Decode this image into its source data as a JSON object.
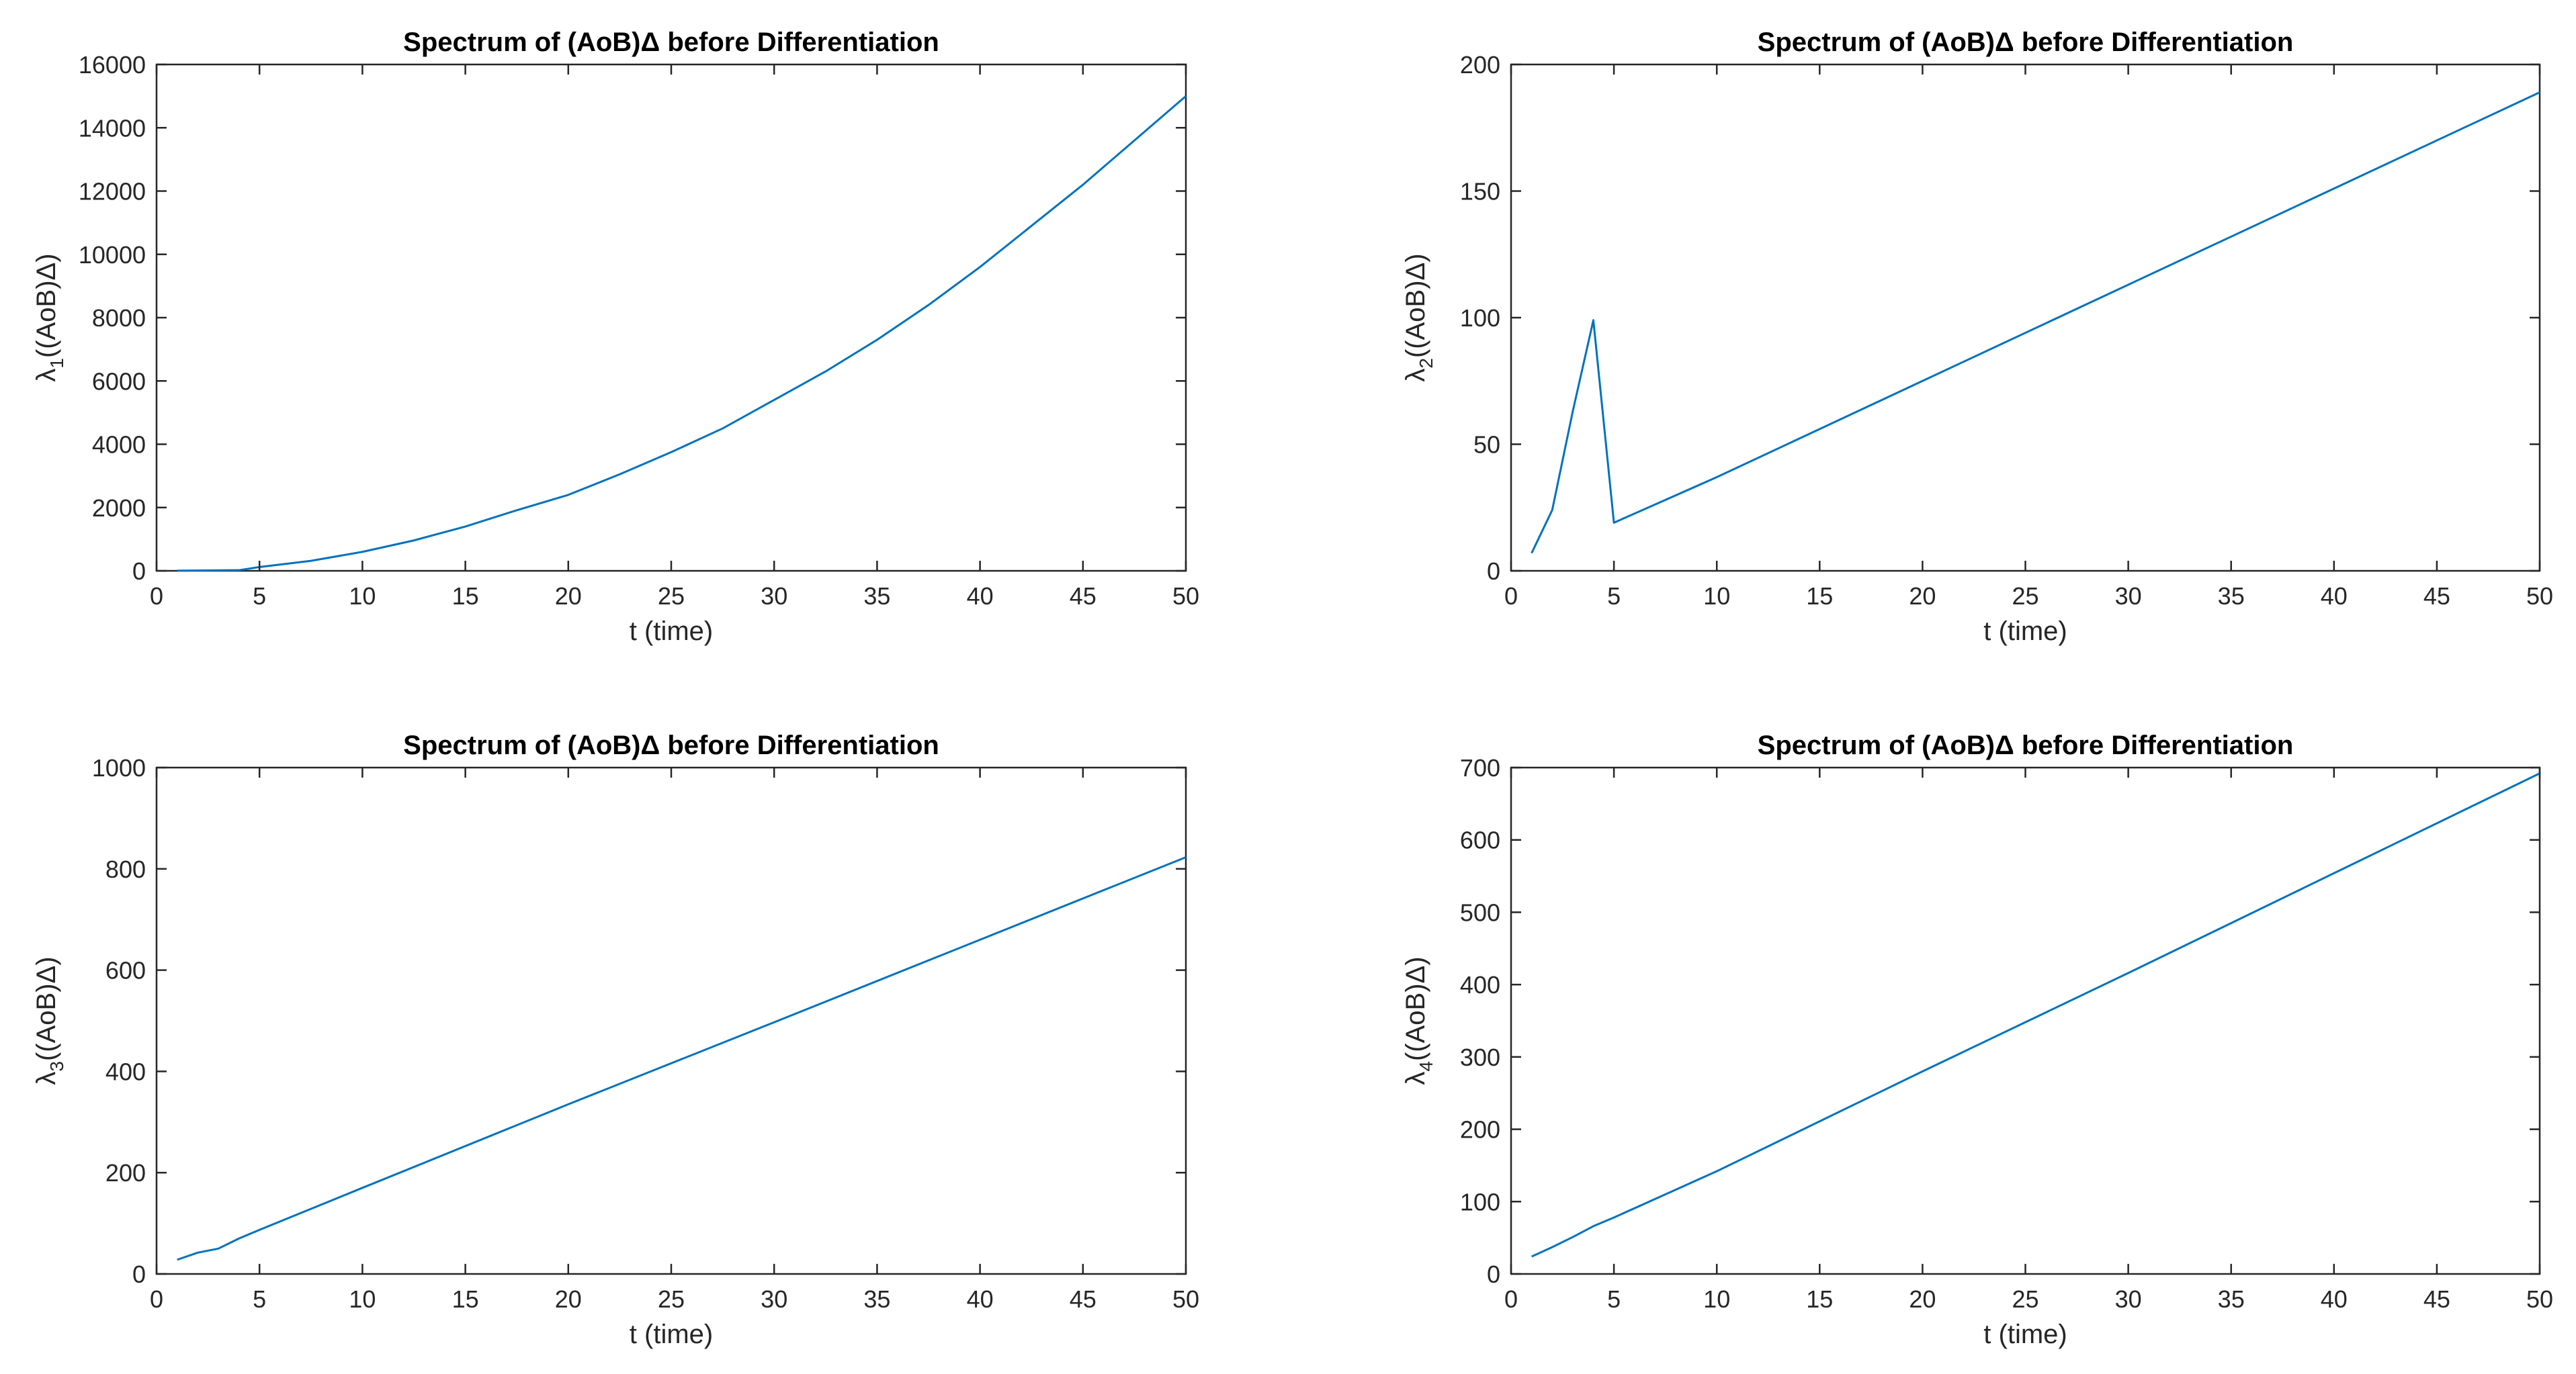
{
  "figure": {
    "background": "#ffffff"
  },
  "chart_data": [
    {
      "type": "line",
      "title": "Spectrum of (AoB)Δ before Differentiation",
      "xlabel": "t (time)",
      "ylabel_symbol": "λ",
      "ylabel_sub": "1",
      "ylabel_rest": "((AoB)Δ)",
      "xlim": [
        0,
        50
      ],
      "ylim": [
        0,
        16000
      ],
      "xticks": [
        0,
        5,
        10,
        15,
        20,
        25,
        30,
        35,
        40,
        45,
        50
      ],
      "xtick_labels": [
        "0",
        "5",
        "10",
        "15",
        "20",
        "25",
        "30",
        "35",
        "40",
        "45",
        "50"
      ],
      "yticks": [
        0,
        2000,
        4000,
        6000,
        8000,
        10000,
        12000,
        14000,
        16000
      ],
      "ytick_labels": [
        "0",
        "2000",
        "4000",
        "6000",
        "8000",
        "10000",
        "12000",
        "14000",
        "16000"
      ],
      "series": [
        {
          "name": "lambda_1",
          "color": "#0072bd",
          "x": [
            1,
            2,
            3,
            4,
            5,
            7.5,
            10,
            12.5,
            15,
            17.5,
            20,
            22.5,
            25,
            27.5,
            30,
            32.5,
            35,
            37.5,
            40,
            42.5,
            45,
            47.5,
            50
          ],
          "y": [
            5,
            10,
            15,
            20,
            120,
            315,
            600,
            960,
            1400,
            1915,
            2400,
            3050,
            3750,
            4500,
            5400,
            6300,
            7300,
            8400,
            9600,
            10900,
            12200,
            13600,
            15000
          ]
        }
      ]
    },
    {
      "type": "line",
      "title": "Spectrum of (AoB)Δ before Differentiation",
      "xlabel": "t (time)",
      "ylabel_symbol": "λ",
      "ylabel_sub": "2",
      "ylabel_rest": "((AoB)Δ)",
      "xlim": [
        0,
        50
      ],
      "ylim": [
        0,
        200
      ],
      "xticks": [
        0,
        5,
        10,
        15,
        20,
        25,
        30,
        35,
        40,
        45,
        50
      ],
      "xtick_labels": [
        "0",
        "5",
        "10",
        "15",
        "20",
        "25",
        "30",
        "35",
        "40",
        "45",
        "50"
      ],
      "yticks": [
        0,
        50,
        100,
        150,
        200
      ],
      "ytick_labels": [
        "0",
        "50",
        "100",
        "150",
        "200"
      ],
      "series": [
        {
          "name": "lambda_2",
          "color": "#0072bd",
          "x": [
            1,
            2,
            3,
            4,
            5,
            10,
            20,
            30,
            40,
            50
          ],
          "y": [
            7,
            24,
            63,
            99,
            19,
            37,
            75,
            113,
            151,
            189
          ]
        }
      ]
    },
    {
      "type": "line",
      "title": "Spectrum of (AoB)Δ before Differentiation",
      "xlabel": "t (time)",
      "ylabel_symbol": "λ",
      "ylabel_sub": "3",
      "ylabel_rest": "((AoB)Δ)",
      "xlim": [
        0,
        50
      ],
      "ylim": [
        0,
        1000
      ],
      "xticks": [
        0,
        5,
        10,
        15,
        20,
        25,
        30,
        35,
        40,
        45,
        50
      ],
      "xtick_labels": [
        "0",
        "5",
        "10",
        "15",
        "20",
        "25",
        "30",
        "35",
        "40",
        "45",
        "50"
      ],
      "yticks": [
        0,
        200,
        400,
        600,
        800,
        1000
      ],
      "ytick_labels": [
        "0",
        "200",
        "400",
        "600",
        "800",
        "1000"
      ],
      "series": [
        {
          "name": "lambda_3",
          "color": "#0072bd",
          "x": [
            1,
            2,
            3,
            4,
            5,
            10,
            20,
            30,
            40,
            50
          ],
          "y": [
            28,
            42,
            50,
            70,
            87,
            170,
            335,
            497,
            660,
            823
          ]
        }
      ]
    },
    {
      "type": "line",
      "title": "Spectrum of (AoB)Δ before Differentiation",
      "xlabel": "t (time)",
      "ylabel_symbol": "λ",
      "ylabel_sub": "4",
      "ylabel_rest": "((AoB)Δ)",
      "xlim": [
        0,
        50
      ],
      "ylim": [
        0,
        700
      ],
      "xticks": [
        0,
        5,
        10,
        15,
        20,
        25,
        30,
        35,
        40,
        45,
        50
      ],
      "xtick_labels": [
        "0",
        "5",
        "10",
        "15",
        "20",
        "25",
        "30",
        "35",
        "40",
        "45",
        "50"
      ],
      "yticks": [
        0,
        100,
        200,
        300,
        400,
        500,
        600,
        700
      ],
      "ytick_labels": [
        "0",
        "100",
        "200",
        "300",
        "400",
        "500",
        "600",
        "700"
      ],
      "series": [
        {
          "name": "lambda_4",
          "color": "#0072bd",
          "x": [
            1,
            2,
            3,
            4,
            5,
            10,
            20,
            30,
            40,
            50
          ],
          "y": [
            24,
            37,
            51,
            66,
            78,
            142,
            280,
            416,
            554,
            692
          ]
        }
      ]
    }
  ]
}
